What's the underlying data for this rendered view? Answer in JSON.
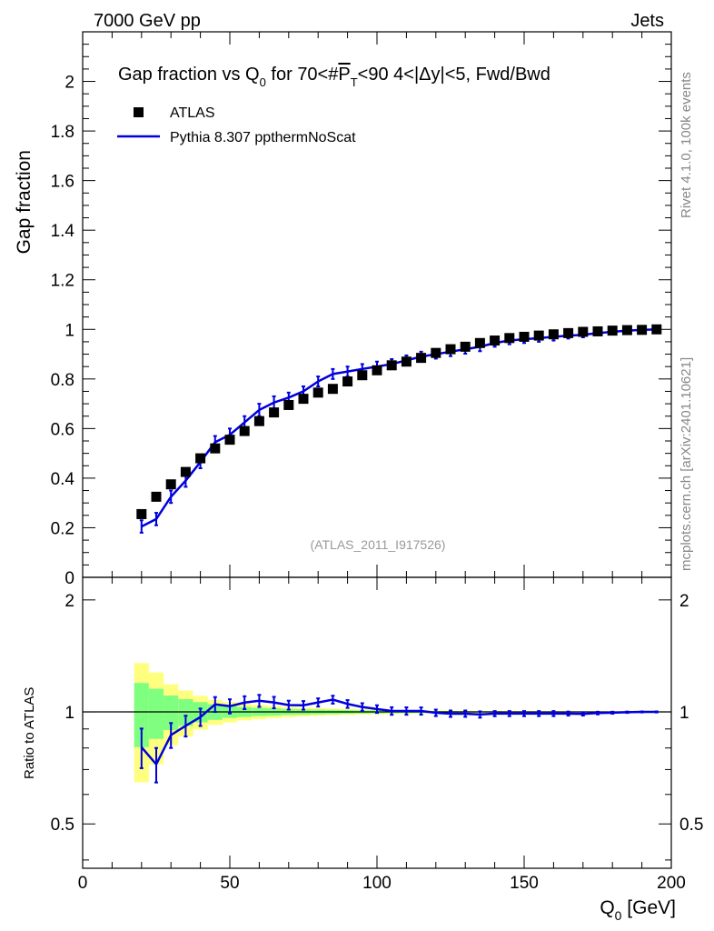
{
  "header": {
    "left": "7000 GeV pp",
    "right": "Jets",
    "side_top": "Rivet 4.1.0,  100k events",
    "side_bottom": "mcplots.cern.ch [arXiv:2401.10621]"
  },
  "colors": {
    "data": "#000000",
    "mc": "#0000dd",
    "band_inner": "#7fff7f",
    "band_outer": "#ffff7f",
    "analysis_tag": "#999999"
  },
  "chart_data": {
    "type": "scatter",
    "title": "Gap fraction vs Q",
    "title_sub": "0",
    "title_rest": " for 70<#",
    "title_overline": "P",
    "title_overline_sub": "T",
    "title_tail": "<90  4<|Δy|<5, Fwd/Bwd",
    "analysis_tag": "(ATLAS_2011_I917526)",
    "xlabel": "Q",
    "xlabel_sub": "0",
    "xlabel_unit": " [GeV]",
    "ylabel": "Gap fraction",
    "ratio_ylabel": "Ratio to ATLAS",
    "xlim": [
      0,
      200
    ],
    "ylim": [
      0,
      2.2
    ],
    "ratio_ylim": [
      0.38,
      2.3
    ],
    "x_ticks": [
      "0",
      "50",
      "100",
      "150",
      "200"
    ],
    "y_ticks": [
      "0",
      "0.2",
      "0.4",
      "0.6",
      "0.8",
      "1",
      "1.2",
      "1.4",
      "1.6",
      "1.8",
      "2"
    ],
    "ratio_ticks": [
      "0.5",
      "1",
      "2"
    ],
    "legend": [
      "ATLAS",
      "Pythia 8.307 ppthermNoScat"
    ],
    "x": [
      20,
      25,
      30,
      35,
      40,
      45,
      50,
      55,
      60,
      65,
      70,
      75,
      80,
      85,
      90,
      95,
      100,
      105,
      110,
      115,
      120,
      125,
      130,
      135,
      140,
      145,
      150,
      155,
      160,
      165,
      170,
      175,
      180,
      185,
      190,
      195
    ],
    "series": [
      {
        "name": "ATLAS",
        "values": [
          0.255,
          0.325,
          0.375,
          0.425,
          0.48,
          0.52,
          0.555,
          0.59,
          0.63,
          0.665,
          0.695,
          0.72,
          0.745,
          0.76,
          0.79,
          0.815,
          0.835,
          0.855,
          0.87,
          0.885,
          0.905,
          0.92,
          0.93,
          0.945,
          0.955,
          0.965,
          0.97,
          0.975,
          0.98,
          0.985,
          0.99,
          0.992,
          0.995,
          0.997,
          0.998,
          1.0
        ],
        "err_inner": [
          0.05,
          0.05,
          0.04,
          0.035,
          0.03,
          0.025,
          0.02,
          0.018,
          0.016,
          0.015,
          0.013,
          0.012,
          0.011,
          0.01,
          0.009,
          0.008,
          0.008,
          0.007,
          0.006,
          0.006,
          0.005,
          0.005,
          0.004,
          0.004,
          0.004,
          0.003,
          0.003,
          0.003,
          0.003,
          0.002,
          0.002,
          0.002,
          0.002,
          0.001,
          0.001,
          0.001
        ],
        "err_outer": [
          0.09,
          0.09,
          0.07,
          0.06,
          0.05,
          0.04,
          0.035,
          0.03,
          0.028,
          0.025,
          0.022,
          0.02,
          0.018,
          0.016,
          0.015,
          0.013,
          0.012,
          0.011,
          0.01,
          0.009,
          0.008,
          0.008,
          0.007,
          0.006,
          0.006,
          0.005,
          0.005,
          0.004,
          0.004,
          0.004,
          0.003,
          0.003,
          0.003,
          0.002,
          0.002,
          0.002
        ]
      },
      {
        "name": "Pythia 8.307 ppthermNoScat",
        "values": [
          0.205,
          0.235,
          0.325,
          0.39,
          0.465,
          0.545,
          0.575,
          0.625,
          0.675,
          0.705,
          0.725,
          0.75,
          0.79,
          0.82,
          0.83,
          0.84,
          0.85,
          0.86,
          0.875,
          0.89,
          0.9,
          0.91,
          0.92,
          0.93,
          0.945,
          0.955,
          0.96,
          0.965,
          0.97,
          0.975,
          0.978,
          0.985,
          0.99,
          0.995,
          0.998,
          1.0
        ],
        "errors": [
          0.025,
          0.025,
          0.025,
          0.025,
          0.025,
          0.025,
          0.025,
          0.025,
          0.025,
          0.025,
          0.02,
          0.02,
          0.02,
          0.02,
          0.02,
          0.02,
          0.02,
          0.02,
          0.02,
          0.02,
          0.018,
          0.018,
          0.018,
          0.018,
          0.015,
          0.015,
          0.015,
          0.015,
          0.015,
          0.012,
          0.01,
          0.008,
          0.006,
          0.004,
          0.003,
          0.003
        ]
      }
    ]
  }
}
